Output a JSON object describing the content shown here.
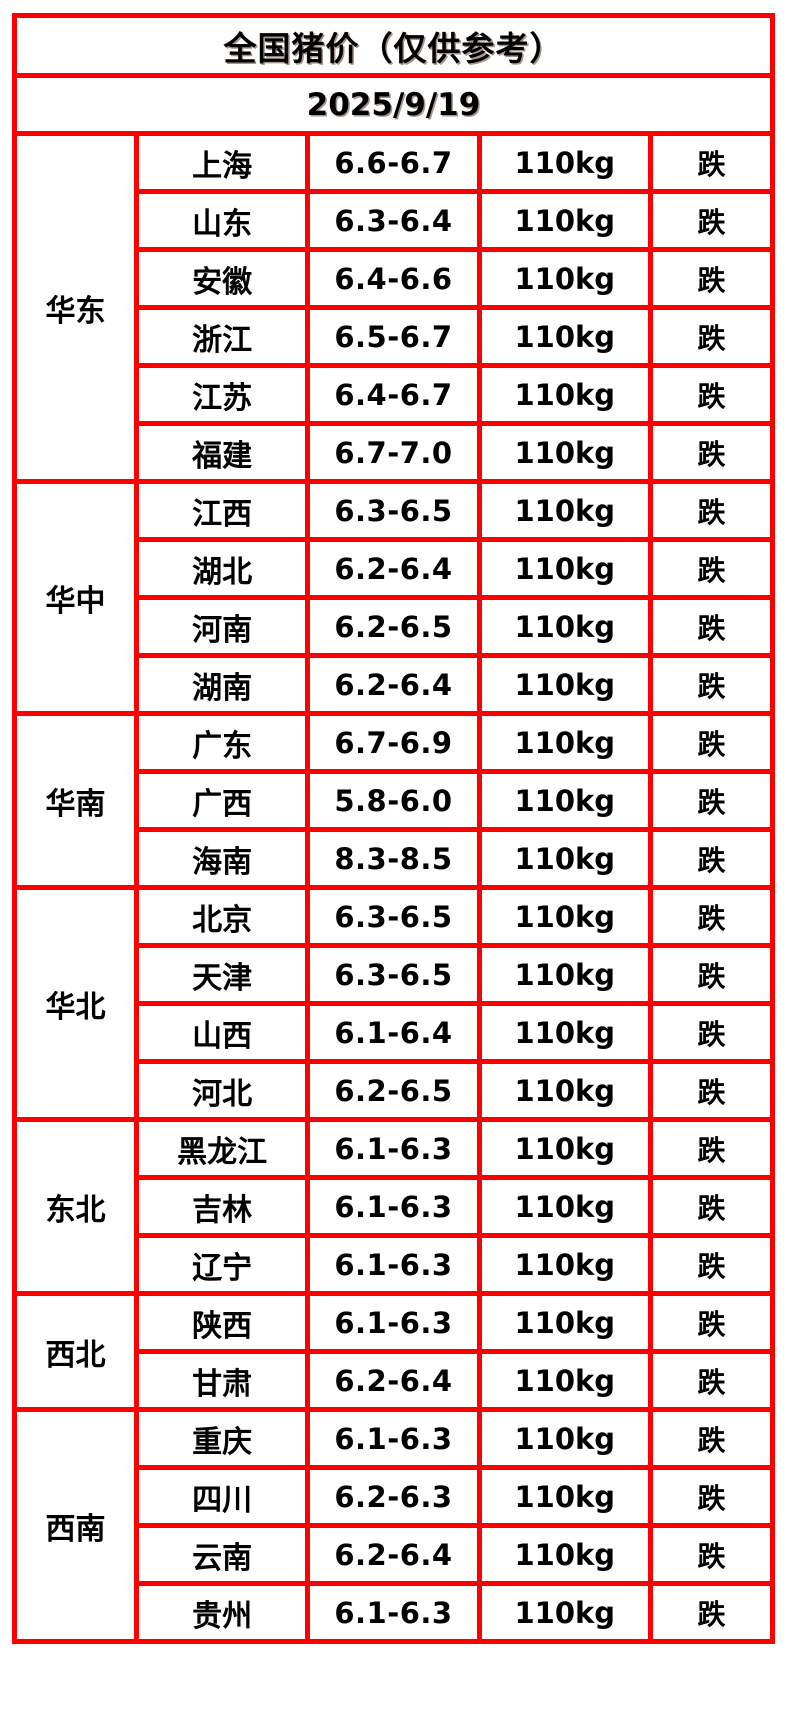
{
  "header": {
    "title": "全国猪价（仅供参考）",
    "date": "2025/9/19"
  },
  "colors": {
    "header_bg": "#EC6418",
    "border_red": "#FF0000",
    "status_green": "#33CC33",
    "text": "#000000",
    "cell_bg": "#FFFFFF"
  },
  "chart_data": {
    "type": "table",
    "title": "全国猪价（仅供参考）",
    "subtitle": "2025/9/19",
    "layout": "grouped-rows; columns: region (merged), province, price range, weight, trend",
    "groups": [
      {
        "region": "华东",
        "rows": [
          {
            "province": "上海",
            "price": "6.6-6.7",
            "weight": "110kg",
            "status": "跌"
          },
          {
            "province": "山东",
            "price": "6.3-6.4",
            "weight": "110kg",
            "status": "跌"
          },
          {
            "province": "安徽",
            "price": "6.4-6.6",
            "weight": "110kg",
            "status": "跌"
          },
          {
            "province": "浙江",
            "price": "6.5-6.7",
            "weight": "110kg",
            "status": "跌"
          },
          {
            "province": "江苏",
            "price": "6.4-6.7",
            "weight": "110kg",
            "status": "跌"
          },
          {
            "province": "福建",
            "price": "6.7-7.0",
            "weight": "110kg",
            "status": "跌"
          }
        ]
      },
      {
        "region": "华中",
        "rows": [
          {
            "province": "江西",
            "price": "6.3-6.5",
            "weight": "110kg",
            "status": "跌"
          },
          {
            "province": "湖北",
            "price": "6.2-6.4",
            "weight": "110kg",
            "status": "跌"
          },
          {
            "province": "河南",
            "price": "6.2-6.5",
            "weight": "110kg",
            "status": "跌"
          },
          {
            "province": "湖南",
            "price": "6.2-6.4",
            "weight": "110kg",
            "status": "跌"
          }
        ]
      },
      {
        "region": "华南",
        "rows": [
          {
            "province": "广东",
            "price": "6.7-6.9",
            "weight": "110kg",
            "status": "跌"
          },
          {
            "province": "广西",
            "price": "5.8-6.0",
            "weight": "110kg",
            "status": "跌"
          },
          {
            "province": "海南",
            "price": "8.3-8.5",
            "weight": "110kg",
            "status": "跌"
          }
        ]
      },
      {
        "region": "华北",
        "rows": [
          {
            "province": "北京",
            "price": "6.3-6.5",
            "weight": "110kg",
            "status": "跌"
          },
          {
            "province": "天津",
            "price": "6.3-6.5",
            "weight": "110kg",
            "status": "跌"
          },
          {
            "province": "山西",
            "price": "6.1-6.4",
            "weight": "110kg",
            "status": "跌"
          },
          {
            "province": "河北",
            "price": "6.2-6.5",
            "weight": "110kg",
            "status": "跌"
          }
        ]
      },
      {
        "region": "东北",
        "rows": [
          {
            "province": "黑龙江",
            "price": "6.1-6.3",
            "weight": "110kg",
            "status": "跌"
          },
          {
            "province": "吉林",
            "price": "6.1-6.3",
            "weight": "110kg",
            "status": "跌"
          },
          {
            "province": "辽宁",
            "price": "6.1-6.3",
            "weight": "110kg",
            "status": "跌"
          }
        ]
      },
      {
        "region": "西北",
        "rows": [
          {
            "province": "陕西",
            "price": "6.1-6.3",
            "weight": "110kg",
            "status": "跌"
          },
          {
            "province": "甘肃",
            "price": "6.2-6.4",
            "weight": "110kg",
            "status": "跌"
          }
        ]
      },
      {
        "region": "西南",
        "rows": [
          {
            "province": "重庆",
            "price": "6.1-6.3",
            "weight": "110kg",
            "status": "跌"
          },
          {
            "province": "四川",
            "price": "6.2-6.3",
            "weight": "110kg",
            "status": "跌"
          },
          {
            "province": "云南",
            "price": "6.2-6.4",
            "weight": "110kg",
            "status": "跌"
          },
          {
            "province": "贵州",
            "price": "6.1-6.3",
            "weight": "110kg",
            "status": "跌"
          }
        ]
      }
    ]
  }
}
